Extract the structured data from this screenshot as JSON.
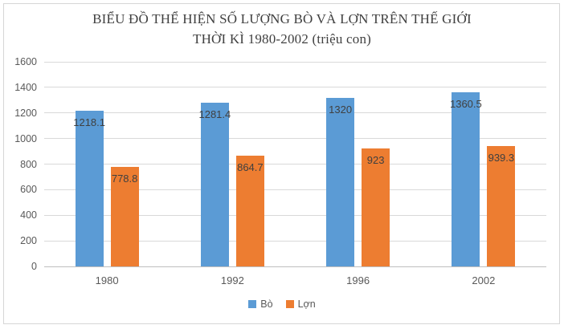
{
  "chart_data": {
    "type": "bar",
    "title_line1": "BIỂU ĐỒ THỂ HIỆN SỐ LƯỢNG BÒ VÀ LỢN TRÊN THẾ GIỚI",
    "title_line2": "THỜI KÌ 1980-2002 (triệu con)",
    "categories": [
      "1980",
      "1992",
      "1996",
      "2002"
    ],
    "series": [
      {
        "key": "bo",
        "name": "Bò",
        "color": "#5B9BD5",
        "values": [
          1218.1,
          1281.4,
          1320,
          1360.5
        ],
        "labels": [
          "1218.1",
          "1281.4",
          "1320",
          "1360.5"
        ]
      },
      {
        "key": "lon",
        "name": "Lợn",
        "color": "#ED7D31",
        "values": [
          778.8,
          864.7,
          923,
          939.3
        ],
        "labels": [
          "778.8",
          "864.7",
          "923",
          "939.3"
        ]
      }
    ],
    "ylim": [
      0,
      1600
    ],
    "ytick_step": 200,
    "yticks": [
      "0",
      "200",
      "400",
      "600",
      "800",
      "1000",
      "1200",
      "1400",
      "1600"
    ],
    "grid": true,
    "legend_position": "bottom",
    "data_labels": "inside-end",
    "colors": {
      "bar_blue": "#5B9BD5",
      "bar_orange": "#ED7D31",
      "gridline": "#D9D9D9",
      "axis_line": "#BFBFBF",
      "tick_text": "#595959",
      "data_label_text": "#404040",
      "title_text": "#404040",
      "frame_border": "#D6D6D6"
    }
  }
}
